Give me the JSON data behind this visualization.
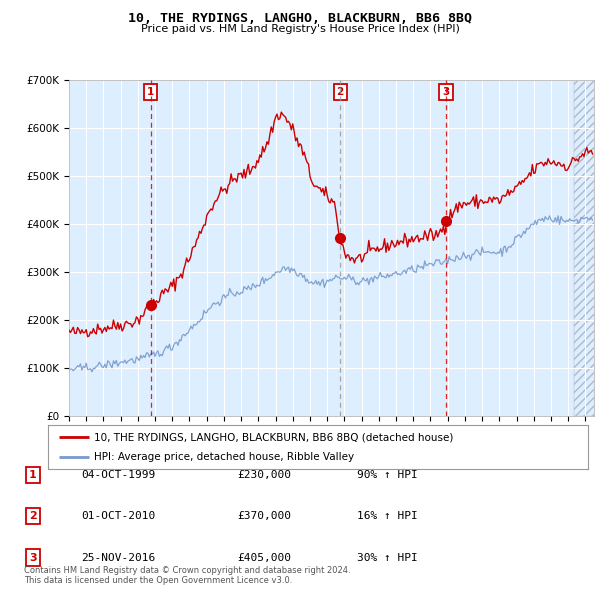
{
  "title": "10, THE RYDINGS, LANGHO, BLACKBURN, BB6 8BQ",
  "subtitle": "Price paid vs. HM Land Registry's House Price Index (HPI)",
  "red_label": "10, THE RYDINGS, LANGHO, BLACKBURN, BB6 8BQ (detached house)",
  "blue_label": "HPI: Average price, detached house, Ribble Valley",
  "footnote": "Contains HM Land Registry data © Crown copyright and database right 2024.\nThis data is licensed under the Open Government Licence v3.0.",
  "sales": [
    {
      "num": 1,
      "date": "04-OCT-1999",
      "price": 230000,
      "pct": "90%",
      "dir": "↑"
    },
    {
      "num": 2,
      "date": "01-OCT-2010",
      "price": 370000,
      "pct": "16%",
      "dir": "↑"
    },
    {
      "num": 3,
      "date": "25-NOV-2016",
      "price": 405000,
      "pct": "30%",
      "dir": "↑"
    }
  ],
  "sale_years": [
    1999.75,
    2010.75,
    2016.9
  ],
  "sale_prices": [
    230000,
    370000,
    405000
  ],
  "ylim": [
    0,
    700000
  ],
  "yticks": [
    0,
    100000,
    200000,
    300000,
    400000,
    500000,
    600000,
    700000
  ],
  "xmin": 1995.0,
  "xmax": 2025.5,
  "bg_color": "#ddeeff",
  "red_color": "#cc0000",
  "blue_color": "#7799cc",
  "red_vline_color": "#dd0000",
  "gray_vline_color": "#999999",
  "grid_color": "#ffffff",
  "hatch_start": 2024.33,
  "red_keypoints": [
    [
      1995.0,
      175000
    ],
    [
      1995.5,
      173000
    ],
    [
      1996.0,
      178000
    ],
    [
      1996.5,
      180000
    ],
    [
      1997.0,
      183000
    ],
    [
      1997.5,
      186000
    ],
    [
      1998.0,
      190000
    ],
    [
      1998.5,
      193000
    ],
    [
      1999.0,
      200000
    ],
    [
      1999.75,
      230000
    ],
    [
      2000.5,
      255000
    ],
    [
      2001.0,
      270000
    ],
    [
      2001.5,
      295000
    ],
    [
      2002.0,
      330000
    ],
    [
      2002.5,
      370000
    ],
    [
      2003.0,
      415000
    ],
    [
      2003.5,
      450000
    ],
    [
      2004.0,
      470000
    ],
    [
      2004.5,
      490000
    ],
    [
      2005.0,
      500000
    ],
    [
      2005.5,
      510000
    ],
    [
      2006.0,
      535000
    ],
    [
      2006.5,
      565000
    ],
    [
      2007.0,
      620000
    ],
    [
      2007.3,
      630000
    ],
    [
      2007.7,
      615000
    ],
    [
      2008.0,
      595000
    ],
    [
      2008.3,
      570000
    ],
    [
      2008.7,
      540000
    ],
    [
      2009.0,
      500000
    ],
    [
      2009.3,
      480000
    ],
    [
      2009.7,
      465000
    ],
    [
      2010.0,
      455000
    ],
    [
      2010.4,
      445000
    ],
    [
      2010.75,
      370000
    ],
    [
      2011.0,
      340000
    ],
    [
      2011.3,
      330000
    ],
    [
      2011.7,
      325000
    ],
    [
      2012.0,
      330000
    ],
    [
      2012.5,
      340000
    ],
    [
      2013.0,
      348000
    ],
    [
      2013.5,
      355000
    ],
    [
      2014.0,
      360000
    ],
    [
      2014.5,
      365000
    ],
    [
      2015.0,
      368000
    ],
    [
      2015.5,
      372000
    ],
    [
      2016.0,
      375000
    ],
    [
      2016.5,
      378000
    ],
    [
      2016.9,
      405000
    ],
    [
      2017.3,
      425000
    ],
    [
      2017.7,
      438000
    ],
    [
      2018.0,
      442000
    ],
    [
      2018.5,
      445000
    ],
    [
      2019.0,
      446000
    ],
    [
      2019.5,
      450000
    ],
    [
      2020.0,
      448000
    ],
    [
      2020.5,
      462000
    ],
    [
      2021.0,
      472000
    ],
    [
      2021.5,
      492000
    ],
    [
      2022.0,
      512000
    ],
    [
      2022.5,
      526000
    ],
    [
      2023.0,
      530000
    ],
    [
      2023.5,
      525000
    ],
    [
      2024.0,
      520000
    ],
    [
      2024.5,
      535000
    ],
    [
      2025.0,
      548000
    ]
  ],
  "blue_keypoints": [
    [
      1995.0,
      97000
    ],
    [
      1995.5,
      98000
    ],
    [
      1996.0,
      100000
    ],
    [
      1996.5,
      102000
    ],
    [
      1997.0,
      105000
    ],
    [
      1997.5,
      108000
    ],
    [
      1998.0,
      112000
    ],
    [
      1998.5,
      115000
    ],
    [
      1999.0,
      118000
    ],
    [
      1999.5,
      122000
    ],
    [
      2000.0,
      128000
    ],
    [
      2000.5,
      136000
    ],
    [
      2001.0,
      145000
    ],
    [
      2001.5,
      162000
    ],
    [
      2002.0,
      180000
    ],
    [
      2002.5,
      197000
    ],
    [
      2003.0,
      218000
    ],
    [
      2003.5,
      235000
    ],
    [
      2004.0,
      245000
    ],
    [
      2004.5,
      255000
    ],
    [
      2005.0,
      260000
    ],
    [
      2005.5,
      265000
    ],
    [
      2006.0,
      275000
    ],
    [
      2006.5,
      285000
    ],
    [
      2007.0,
      298000
    ],
    [
      2007.5,
      308000
    ],
    [
      2008.0,
      305000
    ],
    [
      2008.5,
      295000
    ],
    [
      2009.0,
      280000
    ],
    [
      2009.5,
      276000
    ],
    [
      2010.0,
      280000
    ],
    [
      2010.5,
      288000
    ],
    [
      2011.0,
      287000
    ],
    [
      2011.5,
      284000
    ],
    [
      2012.0,
      280000
    ],
    [
      2012.5,
      284000
    ],
    [
      2013.0,
      288000
    ],
    [
      2013.5,
      292000
    ],
    [
      2014.0,
      296000
    ],
    [
      2014.5,
      300000
    ],
    [
      2015.0,
      305000
    ],
    [
      2015.5,
      310000
    ],
    [
      2016.0,
      315000
    ],
    [
      2016.5,
      318000
    ],
    [
      2017.0,
      324000
    ],
    [
      2017.5,
      330000
    ],
    [
      2018.0,
      334000
    ],
    [
      2018.5,
      337000
    ],
    [
      2019.0,
      340000
    ],
    [
      2019.5,
      342000
    ],
    [
      2020.0,
      340000
    ],
    [
      2020.5,
      352000
    ],
    [
      2021.0,
      368000
    ],
    [
      2021.5,
      385000
    ],
    [
      2022.0,
      400000
    ],
    [
      2022.5,
      410000
    ],
    [
      2023.0,
      412000
    ],
    [
      2023.5,
      408000
    ],
    [
      2024.0,
      405000
    ],
    [
      2024.5,
      408000
    ],
    [
      2025.0,
      412000
    ]
  ]
}
